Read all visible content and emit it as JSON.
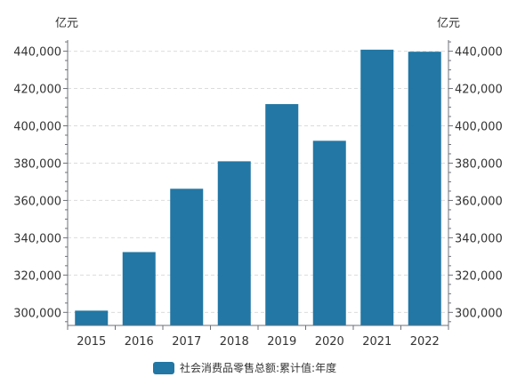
{
  "chart_data": {
    "type": "bar",
    "title": "",
    "categories": [
      "2015",
      "2016",
      "2017",
      "2018",
      "2019",
      "2020",
      "2021",
      "2022"
    ],
    "series": [
      {
        "name": "社会消费品零售总额:累计值:年度",
        "values": [
          300931,
          332316,
          366262,
          380987,
          411649,
          391981,
          440823,
          439733
        ],
        "color": "#2277a4"
      }
    ],
    "y_unit_left": "亿元",
    "y_unit_right": "亿元",
    "ylim": [
      293000,
      446000
    ],
    "y_ticks": [
      "300,000",
      "320,000",
      "340,000",
      "360,000",
      "380,000",
      "400,000",
      "420,000",
      "440,000"
    ],
    "y_tick_values": [
      300000,
      320000,
      340000,
      360000,
      380000,
      400000,
      420000,
      440000
    ],
    "grid": true,
    "legend_position": "bottom-center"
  }
}
